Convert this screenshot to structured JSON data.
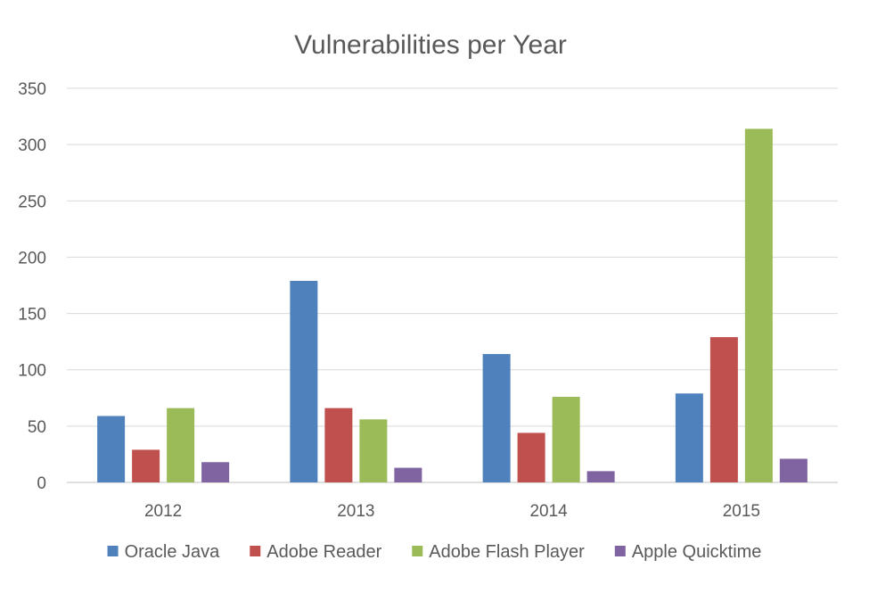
{
  "chart_data": {
    "type": "bar",
    "title": "Vulnerabilities per Year",
    "xlabel": "",
    "ylabel": "",
    "categories": [
      "2012",
      "2013",
      "2014",
      "2015"
    ],
    "ylim": [
      0,
      350
    ],
    "yticks": [
      "0",
      "50",
      "100",
      "150",
      "200",
      "250",
      "300",
      "350"
    ],
    "grid": true,
    "legend_position": "bottom",
    "series": [
      {
        "name": "Oracle Java",
        "color": "#4f81bd",
        "values": [
          59,
          179,
          114,
          79
        ]
      },
      {
        "name": "Adobe Reader",
        "color": "#c0504d",
        "values": [
          29,
          66,
          44,
          129
        ]
      },
      {
        "name": "Adobe Flash Player",
        "color": "#9bbb59",
        "values": [
          66,
          56,
          76,
          314
        ]
      },
      {
        "name": "Apple Quicktime",
        "color": "#8064a2",
        "values": [
          18,
          13,
          10,
          21
        ]
      }
    ]
  }
}
